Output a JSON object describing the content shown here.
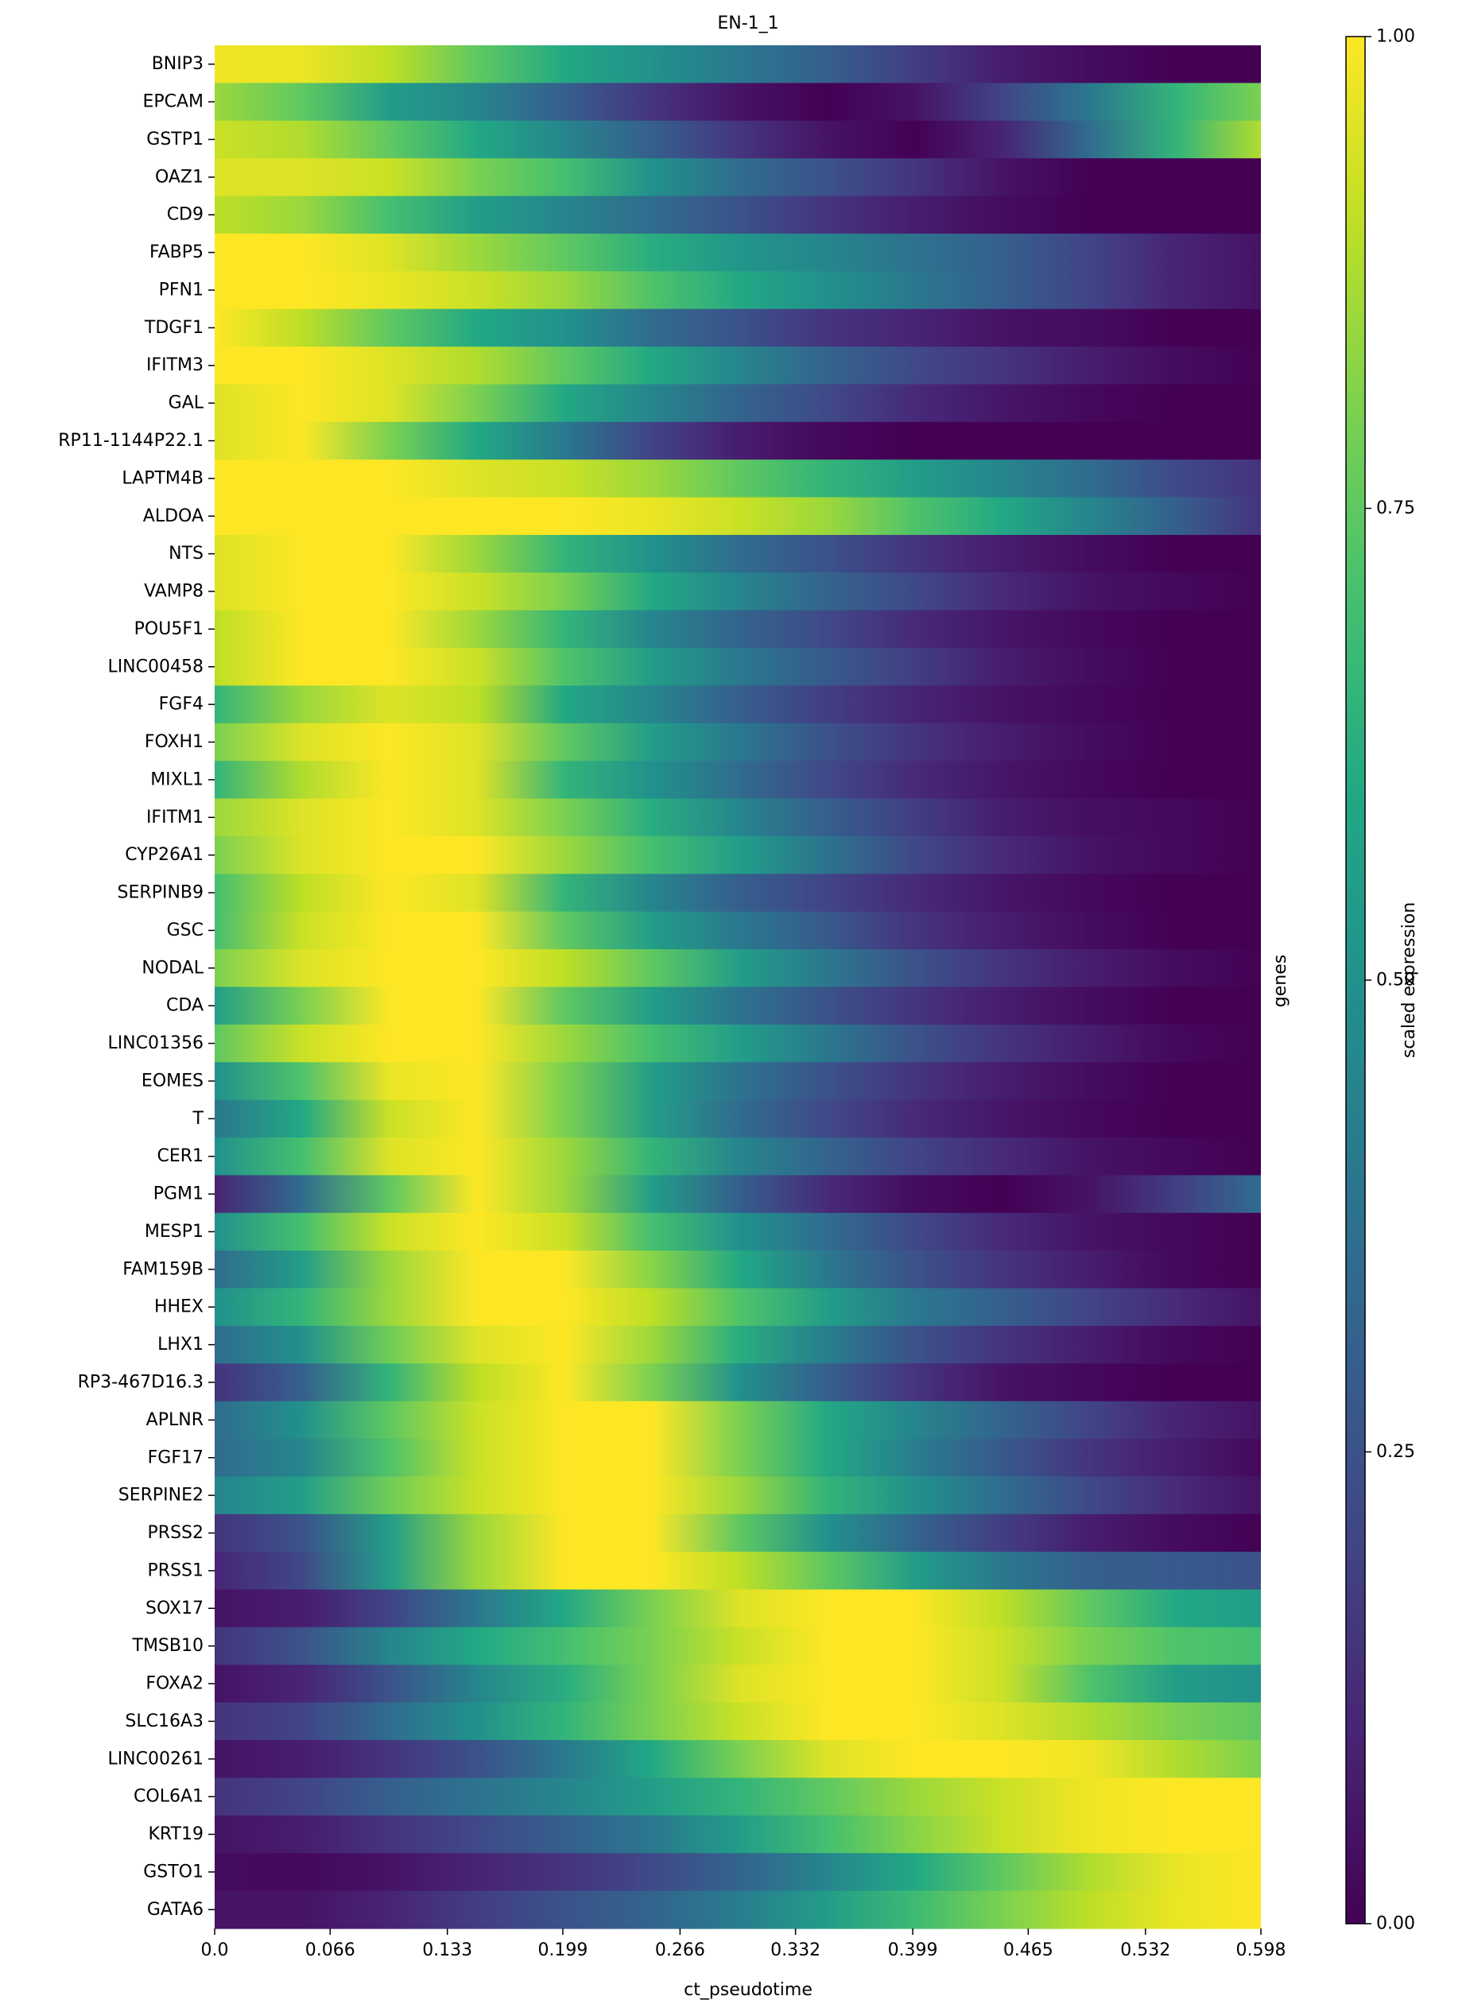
{
  "chart_data": {
    "type": "heatmap",
    "title": "EN-1_1",
    "xlabel": "ct_pseudotime",
    "ylabel": "genes",
    "xlim": [
      0.0,
      0.598
    ],
    "x_ticks": [
      "0.0",
      "0.066",
      "0.133",
      "0.199",
      "0.266",
      "0.332",
      "0.399",
      "0.465",
      "0.532",
      "0.598"
    ],
    "x_tick_values": [
      0.0,
      0.066,
      0.133,
      0.199,
      0.266,
      0.332,
      0.399,
      0.465,
      0.532,
      0.598
    ],
    "colorbar": {
      "label": "scaled expression",
      "range": [
        0.0,
        1.0
      ],
      "ticks": [
        "0.00",
        "0.25",
        "0.50",
        "0.75",
        "1.00"
      ],
      "tick_values": [
        0.0,
        0.25,
        0.5,
        0.75,
        1.0
      ],
      "colormap": "viridis"
    },
    "sample_positions": [
      0.0,
      0.05,
      0.1,
      0.15,
      0.2,
      0.25,
      0.3,
      0.35,
      0.4,
      0.45,
      0.5,
      0.55,
      0.598
    ],
    "genes": [
      "BNIP3",
      "EPCAM",
      "GSTP1",
      "OAZ1",
      "CD9",
      "FABP5",
      "PFN1",
      "TDGF1",
      "IFITM3",
      "GAL",
      "RP11-1144P22.1",
      "LAPTM4B",
      "ALDOA",
      "NTS",
      "VAMP8",
      "POU5F1",
      "LINC00458",
      "FGF4",
      "FOXH1",
      "MIXL1",
      "IFITM1",
      "CYP26A1",
      "SERPINB9",
      "GSC",
      "NODAL",
      "CDA",
      "LINC01356",
      "EOMES",
      "T",
      "CER1",
      "PGM1",
      "MESP1",
      "FAM159B",
      "HHEX",
      "LHX1",
      "RP3-467D16.3",
      "APLNR",
      "FGF17",
      "SERPINE2",
      "PRSS2",
      "PRSS1",
      "SOX17",
      "TMSB10",
      "FOXA2",
      "SLC16A3",
      "LINC00261",
      "COL6A1",
      "KRT19",
      "GSTO1",
      "GATA6"
    ],
    "values": [
      [
        0.98,
        0.97,
        0.9,
        0.75,
        0.6,
        0.5,
        0.4,
        0.3,
        0.18,
        0.08,
        0.03,
        0.0,
        0.0
      ],
      [
        0.85,
        0.75,
        0.55,
        0.45,
        0.3,
        0.15,
        0.05,
        0.0,
        0.05,
        0.2,
        0.4,
        0.65,
        0.8
      ],
      [
        0.92,
        0.88,
        0.75,
        0.6,
        0.45,
        0.3,
        0.15,
        0.05,
        0.0,
        0.1,
        0.35,
        0.65,
        0.88
      ],
      [
        0.95,
        0.95,
        0.92,
        0.8,
        0.7,
        0.5,
        0.35,
        0.25,
        0.15,
        0.05,
        0.0,
        0.0,
        0.0
      ],
      [
        0.9,
        0.85,
        0.7,
        0.55,
        0.45,
        0.35,
        0.25,
        0.15,
        0.08,
        0.03,
        0.0,
        0.0,
        0.0
      ],
      [
        1.0,
        1.0,
        0.95,
        0.85,
        0.75,
        0.62,
        0.52,
        0.45,
        0.38,
        0.3,
        0.2,
        0.1,
        0.05
      ],
      [
        1.0,
        1.0,
        0.97,
        0.92,
        0.85,
        0.72,
        0.6,
        0.5,
        0.4,
        0.3,
        0.2,
        0.1,
        0.05
      ],
      [
        1.0,
        0.9,
        0.75,
        0.6,
        0.5,
        0.35,
        0.25,
        0.15,
        0.1,
        0.05,
        0.03,
        0.0,
        0.0
      ],
      [
        1.0,
        1.0,
        0.95,
        0.88,
        0.75,
        0.6,
        0.45,
        0.32,
        0.22,
        0.15,
        0.08,
        0.03,
        0.0
      ],
      [
        0.95,
        1.0,
        0.95,
        0.8,
        0.6,
        0.45,
        0.32,
        0.22,
        0.12,
        0.06,
        0.02,
        0.0,
        0.0
      ],
      [
        0.95,
        1.0,
        0.8,
        0.6,
        0.4,
        0.2,
        0.08,
        0.02,
        0.0,
        0.0,
        0.0,
        0.0,
        0.0
      ],
      [
        1.0,
        1.0,
        1.0,
        0.95,
        0.92,
        0.85,
        0.75,
        0.65,
        0.55,
        0.45,
        0.35,
        0.22,
        0.15
      ],
      [
        1.0,
        1.0,
        1.0,
        1.0,
        1.0,
        0.97,
        0.92,
        0.85,
        0.72,
        0.6,
        0.45,
        0.3,
        0.15
      ],
      [
        0.95,
        1.0,
        1.0,
        0.85,
        0.65,
        0.5,
        0.35,
        0.25,
        0.15,
        0.08,
        0.03,
        0.0,
        0.0
      ],
      [
        0.95,
        1.0,
        1.0,
        0.92,
        0.8,
        0.6,
        0.45,
        0.32,
        0.22,
        0.12,
        0.05,
        0.02,
        0.0
      ],
      [
        0.9,
        1.0,
        1.0,
        0.85,
        0.65,
        0.45,
        0.32,
        0.22,
        0.12,
        0.06,
        0.02,
        0.0,
        0.0
      ],
      [
        0.9,
        1.0,
        1.0,
        0.92,
        0.72,
        0.55,
        0.4,
        0.28,
        0.18,
        0.08,
        0.03,
        0.0,
        0.0
      ],
      [
        0.65,
        0.85,
        0.95,
        0.9,
        0.6,
        0.45,
        0.3,
        0.18,
        0.1,
        0.05,
        0.02,
        0.0,
        0.0
      ],
      [
        0.8,
        0.95,
        1.0,
        0.95,
        0.75,
        0.55,
        0.4,
        0.25,
        0.15,
        0.08,
        0.03,
        0.0,
        0.0
      ],
      [
        0.65,
        0.88,
        1.0,
        0.95,
        0.65,
        0.5,
        0.35,
        0.22,
        0.12,
        0.06,
        0.02,
        0.0,
        0.0
      ],
      [
        0.85,
        0.95,
        1.0,
        0.95,
        0.8,
        0.62,
        0.45,
        0.3,
        0.18,
        0.08,
        0.04,
        0.02,
        0.0
      ],
      [
        0.8,
        0.95,
        1.0,
        1.0,
        0.85,
        0.7,
        0.55,
        0.38,
        0.22,
        0.12,
        0.05,
        0.02,
        0.0
      ],
      [
        0.7,
        0.9,
        1.0,
        0.95,
        0.65,
        0.45,
        0.3,
        0.2,
        0.12,
        0.06,
        0.02,
        0.0,
        0.0
      ],
      [
        0.7,
        0.92,
        1.0,
        1.0,
        0.75,
        0.55,
        0.4,
        0.28,
        0.15,
        0.08,
        0.03,
        0.0,
        0.0
      ],
      [
        0.8,
        0.95,
        1.0,
        1.0,
        0.9,
        0.75,
        0.55,
        0.4,
        0.25,
        0.15,
        0.08,
        0.03,
        0.0
      ],
      [
        0.55,
        0.8,
        1.0,
        1.0,
        0.75,
        0.55,
        0.38,
        0.25,
        0.15,
        0.08,
        0.03,
        0.0,
        0.0
      ],
      [
        0.75,
        0.92,
        1.0,
        1.0,
        0.85,
        0.7,
        0.55,
        0.4,
        0.25,
        0.15,
        0.08,
        0.02,
        0.0
      ],
      [
        0.5,
        0.72,
        0.97,
        1.0,
        0.8,
        0.55,
        0.38,
        0.25,
        0.15,
        0.08,
        0.03,
        0.0,
        0.0
      ],
      [
        0.4,
        0.6,
        0.92,
        1.0,
        0.8,
        0.55,
        0.35,
        0.22,
        0.12,
        0.06,
        0.02,
        0.0,
        0.0
      ],
      [
        0.5,
        0.7,
        0.95,
        1.0,
        0.85,
        0.65,
        0.45,
        0.32,
        0.2,
        0.12,
        0.05,
        0.02,
        0.0
      ],
      [
        0.1,
        0.35,
        0.75,
        1.0,
        0.85,
        0.55,
        0.3,
        0.12,
        0.03,
        0.0,
        0.05,
        0.18,
        0.35
      ],
      [
        0.5,
        0.7,
        0.92,
        1.0,
        0.92,
        0.7,
        0.5,
        0.35,
        0.22,
        0.12,
        0.05,
        0.02,
        0.0
      ],
      [
        0.35,
        0.55,
        0.85,
        1.0,
        1.0,
        0.82,
        0.6,
        0.4,
        0.25,
        0.15,
        0.08,
        0.02,
        0.0
      ],
      [
        0.5,
        0.65,
        0.85,
        1.0,
        1.0,
        0.9,
        0.72,
        0.55,
        0.4,
        0.3,
        0.2,
        0.12,
        0.05
      ],
      [
        0.35,
        0.5,
        0.78,
        0.95,
        1.0,
        0.85,
        0.62,
        0.42,
        0.25,
        0.15,
        0.08,
        0.02,
        0.0
      ],
      [
        0.15,
        0.3,
        0.65,
        0.9,
        1.0,
        0.8,
        0.5,
        0.3,
        0.15,
        0.05,
        0.02,
        0.0,
        0.0
      ],
      [
        0.35,
        0.5,
        0.75,
        0.92,
        1.0,
        1.0,
        0.8,
        0.6,
        0.45,
        0.32,
        0.2,
        0.1,
        0.05
      ],
      [
        0.35,
        0.45,
        0.72,
        0.92,
        1.0,
        1.0,
        0.8,
        0.6,
        0.42,
        0.28,
        0.15,
        0.08,
        0.02
      ],
      [
        0.45,
        0.55,
        0.78,
        0.92,
        1.0,
        1.0,
        0.85,
        0.65,
        0.5,
        0.35,
        0.22,
        0.12,
        0.05
      ],
      [
        0.15,
        0.25,
        0.55,
        0.85,
        1.0,
        1.0,
        0.75,
        0.5,
        0.32,
        0.18,
        0.08,
        0.03,
        0.0
      ],
      [
        0.1,
        0.22,
        0.55,
        0.85,
        1.0,
        1.0,
        0.9,
        0.75,
        0.55,
        0.4,
        0.3,
        0.28,
        0.25
      ],
      [
        0.05,
        0.08,
        0.2,
        0.4,
        0.6,
        0.8,
        0.95,
        1.0,
        1.0,
        0.9,
        0.75,
        0.6,
        0.55
      ],
      [
        0.15,
        0.25,
        0.45,
        0.6,
        0.7,
        0.8,
        0.92,
        1.0,
        1.0,
        0.92,
        0.8,
        0.72,
        0.7
      ],
      [
        0.05,
        0.1,
        0.25,
        0.45,
        0.62,
        0.8,
        0.95,
        1.0,
        1.0,
        0.92,
        0.72,
        0.55,
        0.5
      ],
      [
        0.15,
        0.2,
        0.35,
        0.5,
        0.65,
        0.8,
        0.92,
        1.0,
        1.0,
        0.95,
        0.88,
        0.8,
        0.75
      ],
      [
        0.05,
        0.08,
        0.15,
        0.25,
        0.4,
        0.6,
        0.8,
        0.95,
        1.0,
        1.0,
        0.98,
        0.88,
        0.8
      ],
      [
        0.15,
        0.2,
        0.3,
        0.38,
        0.45,
        0.55,
        0.65,
        0.75,
        0.85,
        0.92,
        0.98,
        1.0,
        1.0
      ],
      [
        0.05,
        0.08,
        0.15,
        0.22,
        0.3,
        0.4,
        0.55,
        0.7,
        0.82,
        0.92,
        0.98,
        1.0,
        1.0
      ],
      [
        0.03,
        0.02,
        0.05,
        0.1,
        0.15,
        0.22,
        0.32,
        0.45,
        0.6,
        0.75,
        0.88,
        0.97,
        1.0
      ],
      [
        0.05,
        0.05,
        0.1,
        0.18,
        0.25,
        0.32,
        0.42,
        0.55,
        0.68,
        0.8,
        0.9,
        0.97,
        1.0
      ]
    ]
  }
}
